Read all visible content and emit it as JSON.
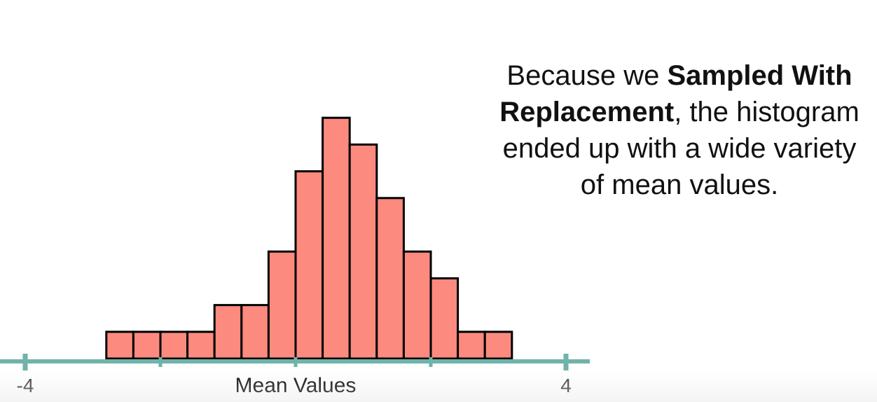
{
  "caption": {
    "lead": "Because we ",
    "bold": "Sampled With Replacement",
    "line1_bold_part": "Sampled With",
    "line2_bold_part": "Replacement",
    "line2_rest": ", the histogram",
    "line3": "ended up with a wide variety",
    "line4": "of mean values."
  },
  "colors": {
    "bar_fill": "#fd8a7f",
    "bar_stroke": "#000000",
    "axis": "#6fb3a9",
    "text": "#111111"
  },
  "chart_data": {
    "type": "bar",
    "xlabel": "Mean Values",
    "xlim": [
      -4,
      4
    ],
    "x_ticks": [
      -4,
      -2,
      0,
      2,
      4
    ],
    "x_tick_labels": [
      "-4",
      "",
      "",
      "",
      "4"
    ],
    "bin_width": 0.4,
    "bins": [
      {
        "x0": -2.8,
        "x1": -2.4,
        "count": 1
      },
      {
        "x0": -2.4,
        "x1": -2.0,
        "count": 1
      },
      {
        "x0": -2.0,
        "x1": -1.6,
        "count": 1
      },
      {
        "x0": -1.6,
        "x1": -1.2,
        "count": 1
      },
      {
        "x0": -1.2,
        "x1": -0.8,
        "count": 2
      },
      {
        "x0": -0.8,
        "x1": -0.4,
        "count": 2
      },
      {
        "x0": -0.4,
        "x1": 0.0,
        "count": 4
      },
      {
        "x0": 0.0,
        "x1": 0.4,
        "count": 7
      },
      {
        "x0": 0.4,
        "x1": 0.8,
        "count": 9
      },
      {
        "x0": 0.8,
        "x1": 1.2,
        "count": 8
      },
      {
        "x0": 1.2,
        "x1": 1.6,
        "count": 6
      },
      {
        "x0": 1.6,
        "x1": 2.0,
        "count": 4
      },
      {
        "x0": 2.0,
        "x1": 2.4,
        "count": 3
      },
      {
        "x0": 2.4,
        "x1": 2.8,
        "count": 1
      },
      {
        "x0": 2.8,
        "x1": 3.2,
        "count": 1
      }
    ],
    "ylim": [
      0,
      9
    ]
  }
}
